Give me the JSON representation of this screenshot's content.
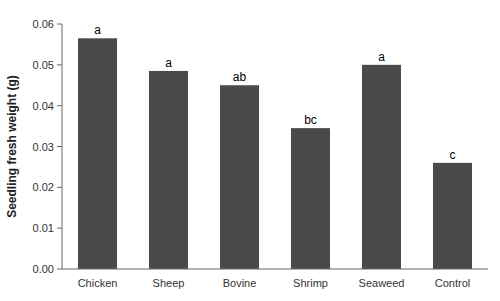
{
  "chart_data": {
    "type": "bar",
    "categories": [
      "Chicken",
      "Sheep",
      "Bovine",
      "Shrimp",
      "Seaweed",
      "Control"
    ],
    "values": [
      0.0565,
      0.0485,
      0.045,
      0.0345,
      0.05,
      0.026
    ],
    "annotations": [
      "a",
      "a",
      "ab",
      "bc",
      "a",
      "c"
    ],
    "color": "#4a4a4a",
    "ylabel": "Seedling fresh weight (g)",
    "ylim": [
      0,
      0.06
    ],
    "yticks": [
      {
        "value": 0,
        "label": "0.00"
      },
      0.01,
      0.02,
      0.03,
      0.04,
      0.05,
      0.06
    ],
    "grid": false
  }
}
